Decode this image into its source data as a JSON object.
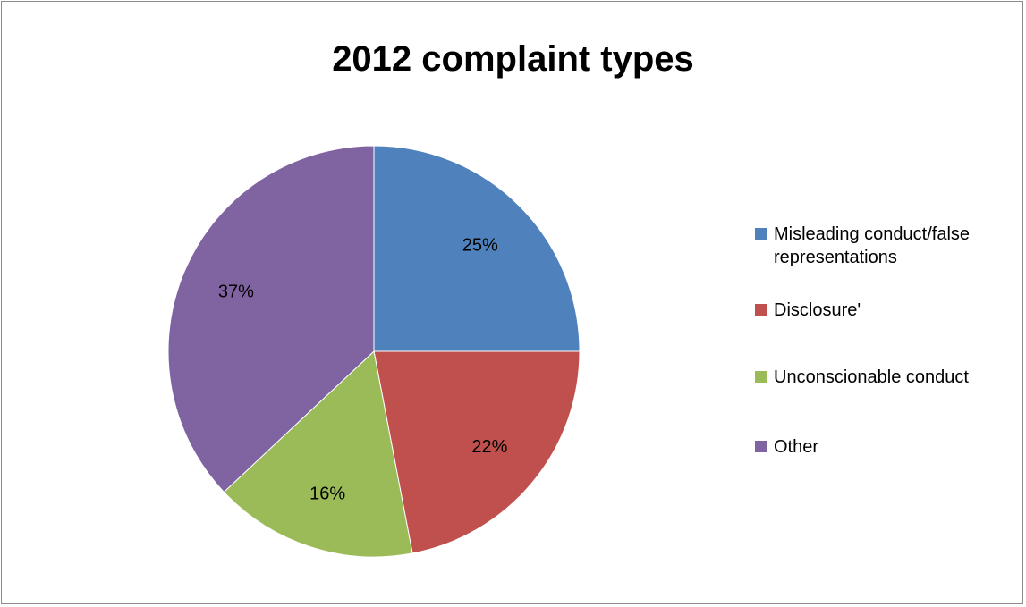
{
  "chart_data": {
    "type": "pie",
    "title": "2012 complaint types",
    "categories": [
      "Misleading conduct/false representations",
      "Disclosure'",
      "Unconscionable conduct",
      "Other"
    ],
    "values": [
      25,
      22,
      16,
      37
    ],
    "data_labels": [
      "25%",
      "22%",
      "16%",
      "37%"
    ],
    "colors": [
      "#4f81bd",
      "#c0504d",
      "#9bbb59",
      "#8064a2"
    ],
    "legend_position": "right",
    "start_angle": "top",
    "direction": "clockwise"
  }
}
